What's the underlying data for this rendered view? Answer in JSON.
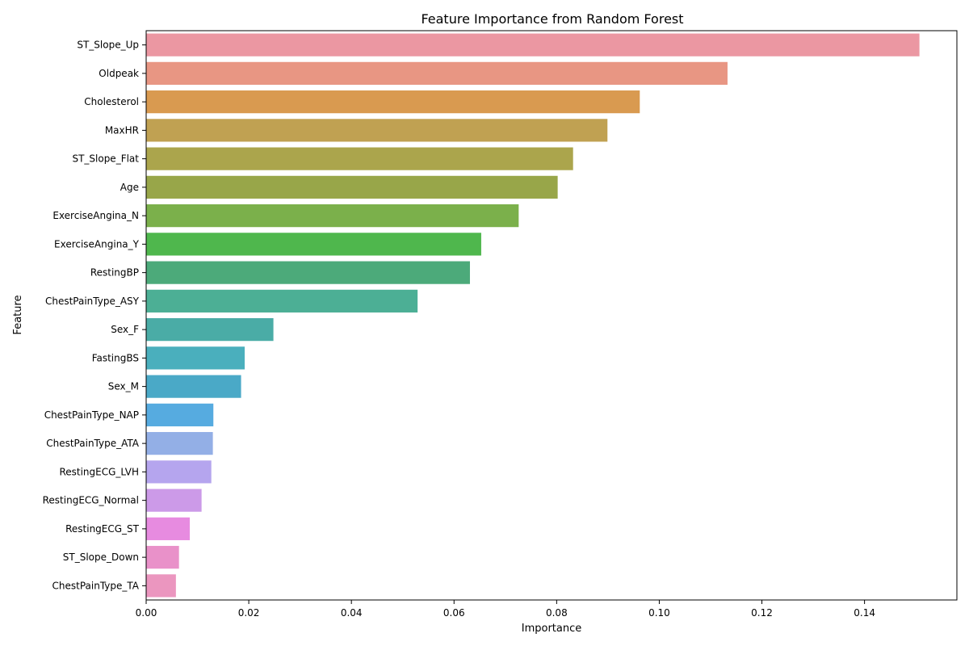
{
  "chart_data": {
    "type": "bar",
    "orientation": "horizontal",
    "title": "Feature Importance from Random Forest",
    "xlabel": "Importance",
    "ylabel": "Feature",
    "xlim": [
      0,
      0.158
    ],
    "xticks": [
      "0.00",
      "0.02",
      "0.04",
      "0.06",
      "0.08",
      "0.10",
      "0.12",
      "0.14"
    ],
    "grid": false,
    "legend": "none",
    "categories": [
      "ST_Slope_Up",
      "Oldpeak",
      "Cholesterol",
      "MaxHR",
      "ST_Slope_Flat",
      "Age",
      "ExerciseAngina_N",
      "ExerciseAngina_Y",
      "RestingBP",
      "ChestPainType_ASY",
      "Sex_F",
      "FastingBS",
      "Sex_M",
      "ChestPainType_NAP",
      "ChestPainType_ATA",
      "RestingECG_LVH",
      "RestingECG_Normal",
      "RestingECG_ST",
      "ST_Slope_Down",
      "ChestPainType_TA"
    ],
    "values": [
      0.1507,
      0.1133,
      0.0962,
      0.0899,
      0.0832,
      0.0802,
      0.0726,
      0.0653,
      0.0631,
      0.0529,
      0.0248,
      0.0192,
      0.0185,
      0.0131,
      0.013,
      0.0127,
      0.0108,
      0.0085,
      0.0064,
      0.0058
    ],
    "colors": [
      "#eb97a2",
      "#e89683",
      "#d99a50",
      "#c0a152",
      "#aba54c",
      "#98a649",
      "#7bb04b",
      "#4fb74d",
      "#4caa7a",
      "#4caf95",
      "#4aaca6",
      "#4aafbd",
      "#4aa9c7",
      "#56abe0",
      "#93afe6",
      "#b5a5ee",
      "#cc9ae8",
      "#e78be0",
      "#e991c9",
      "#eb96bf"
    ]
  }
}
